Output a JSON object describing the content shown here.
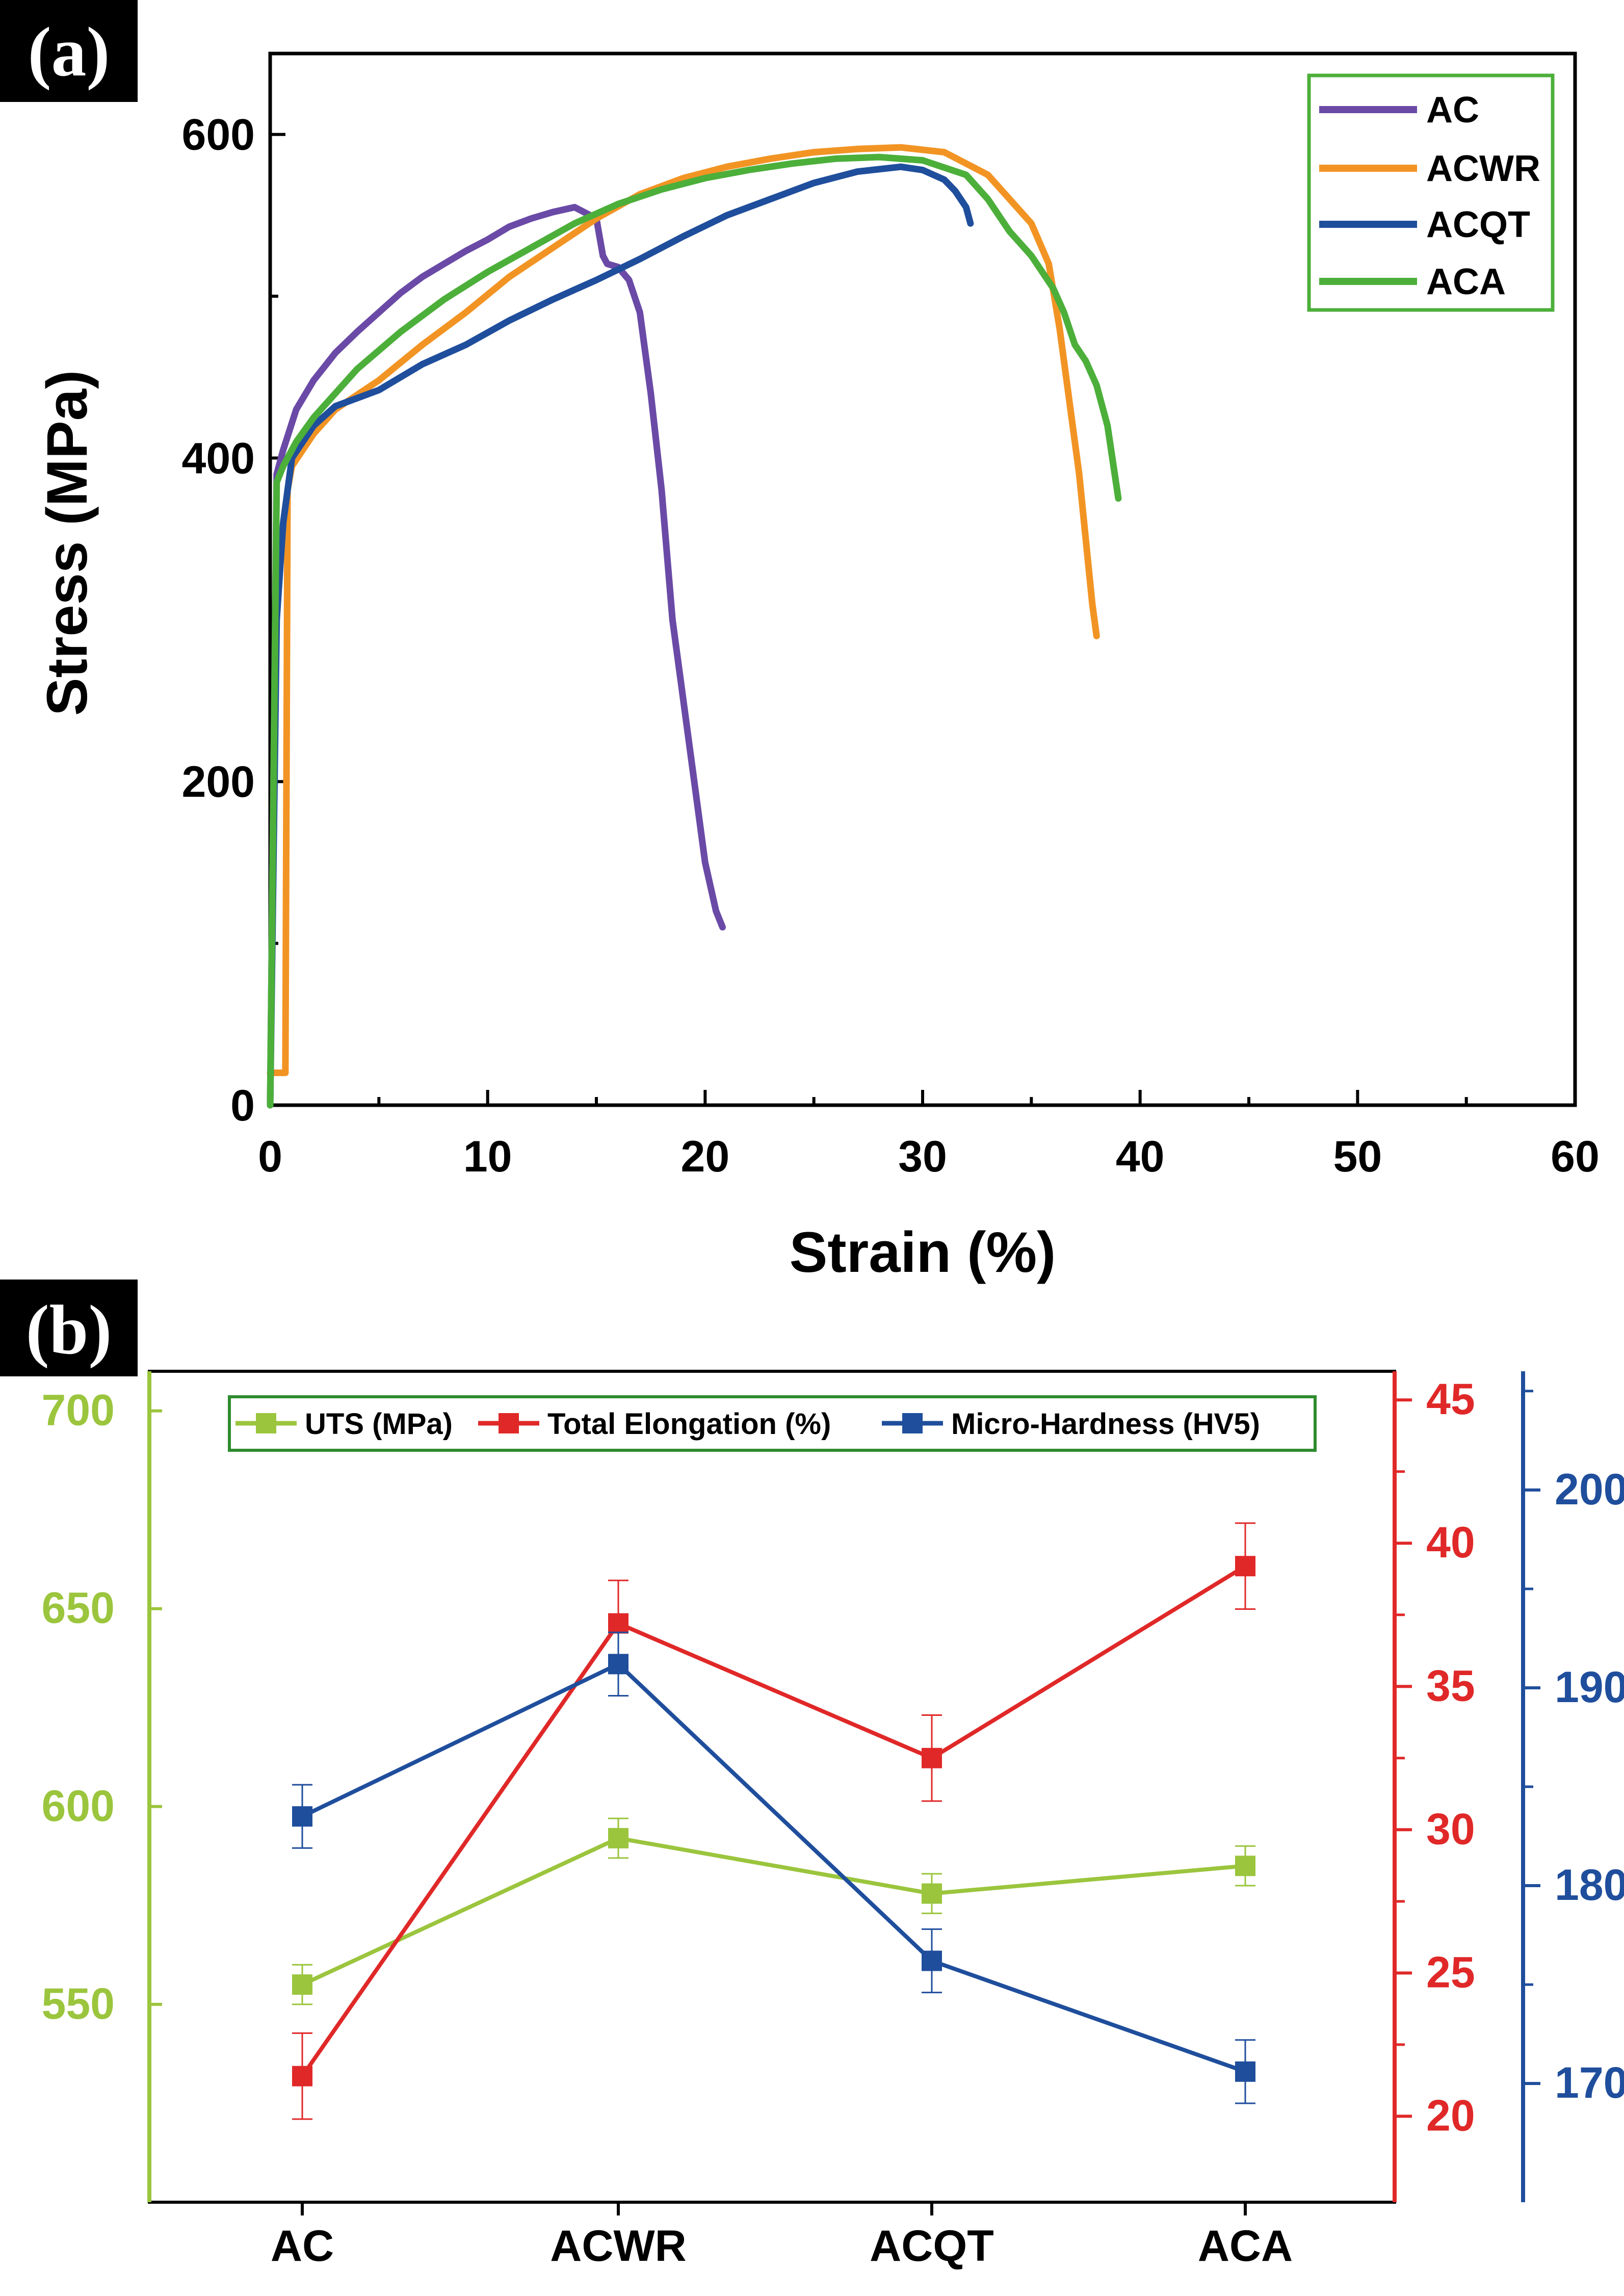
{
  "chart_data": [
    {
      "type": "line",
      "panel_label": "(a)",
      "xlabel": "Strain (%)",
      "ylabel": "Stress (MPa)",
      "xlim": [
        0,
        60
      ],
      "ylim": [
        0,
        650
      ],
      "xticks": [
        0,
        10,
        20,
        30,
        40,
        50,
        60
      ],
      "yticks": [
        0,
        200,
        400,
        600
      ],
      "grid": false,
      "legend_position": "top-right",
      "series": [
        {
          "name": "AC",
          "color": "#6a4aa6",
          "x": [
            0,
            0.3,
            0.6,
            1.2,
            2,
            3,
            4,
            5,
            6,
            7,
            8,
            9,
            10,
            11,
            12,
            13,
            14,
            15,
            15.3,
            15.5,
            16,
            16.5,
            17,
            17.5,
            18,
            18.5,
            19,
            19.5,
            20,
            20.5,
            20.8
          ],
          "y": [
            0,
            390,
            405,
            430,
            448,
            465,
            478,
            490,
            502,
            512,
            520,
            528,
            535,
            543,
            548,
            552,
            555,
            548,
            525,
            520,
            518,
            510,
            490,
            440,
            380,
            300,
            250,
            200,
            150,
            120,
            110
          ]
        },
        {
          "name": "ACWR",
          "color": "#f29424",
          "x": [
            0,
            0.7,
            0.8,
            1,
            2,
            3,
            5,
            7,
            9,
            11,
            13,
            15,
            17,
            19,
            21,
            23,
            25,
            27,
            29,
            31,
            33,
            35,
            35.8,
            36.3,
            36.8,
            37.2,
            37.5,
            37.8,
            38
          ],
          "y": [
            20,
            20,
            380,
            395,
            415,
            430,
            448,
            470,
            490,
            512,
            530,
            548,
            563,
            573,
            580,
            585,
            589,
            591,
            592,
            589,
            575,
            545,
            520,
            480,
            430,
            390,
            350,
            310,
            290
          ]
        },
        {
          "name": "ACQT",
          "color": "#1f4e9c",
          "x": [
            0,
            0.3,
            0.6,
            1,
            2,
            3,
            5,
            7,
            9,
            11,
            13,
            15,
            17,
            19,
            21,
            23,
            25,
            27,
            29,
            30,
            31,
            31.5,
            32,
            32.2
          ],
          "y": [
            0,
            300,
            360,
            400,
            420,
            432,
            442,
            458,
            470,
            485,
            498,
            510,
            523,
            537,
            550,
            560,
            570,
            577,
            580,
            578,
            572,
            565,
            555,
            545
          ]
        },
        {
          "name": "ACA",
          "color": "#4caf3a",
          "x": [
            0,
            0.3,
            0.6,
            1.2,
            2,
            3,
            4,
            6,
            8,
            10,
            12,
            14,
            16,
            18,
            20,
            22,
            24,
            26,
            28,
            30,
            32,
            33,
            34,
            35,
            36,
            36.5,
            37,
            37.5,
            38,
            38.5,
            39
          ],
          "y": [
            0,
            385,
            395,
            410,
            425,
            440,
            455,
            478,
            498,
            515,
            530,
            545,
            557,
            566,
            573,
            578,
            582,
            585,
            586,
            584,
            575,
            560,
            540,
            525,
            505,
            490,
            470,
            460,
            445,
            420,
            375
          ]
        }
      ]
    },
    {
      "type": "line",
      "panel_label": "(b)",
      "categories": [
        "AC",
        "ACWR",
        "ACQT",
        "ACA"
      ],
      "grid": false,
      "legend_position": "top",
      "axes": {
        "left": {
          "color": "#9bc53d",
          "range": [
            500,
            710
          ],
          "ticks": [
            550,
            600,
            650,
            700
          ]
        },
        "right1": {
          "color": "#e02828",
          "range": [
            17,
            46
          ],
          "ticks": [
            20,
            25,
            30,
            35,
            40,
            45
          ]
        },
        "right2": {
          "color": "#1f4e9c",
          "range": [
            164,
            206
          ],
          "ticks": [
            170,
            180,
            190,
            200
          ]
        }
      },
      "series": [
        {
          "name": "UTS (MPa)",
          "axis": "left",
          "color": "#9bc53d",
          "values": [
            555,
            592,
            578,
            585
          ],
          "errors": [
            5,
            5,
            5,
            5
          ]
        },
        {
          "name": "Total Elongation (%)",
          "axis": "right1",
          "color": "#e02828",
          "values": [
            21.4,
            37.2,
            32.5,
            39.2
          ],
          "errors": [
            1.5,
            1.5,
            1.5,
            1.5
          ]
        },
        {
          "name": "Micro-Hardness (HV5)",
          "axis": "right2",
          "color": "#1f4e9c",
          "values": [
            183.5,
            191.2,
            176.2,
            170.6
          ],
          "errors": [
            1.6,
            1.6,
            1.6,
            1.6
          ]
        }
      ]
    }
  ]
}
